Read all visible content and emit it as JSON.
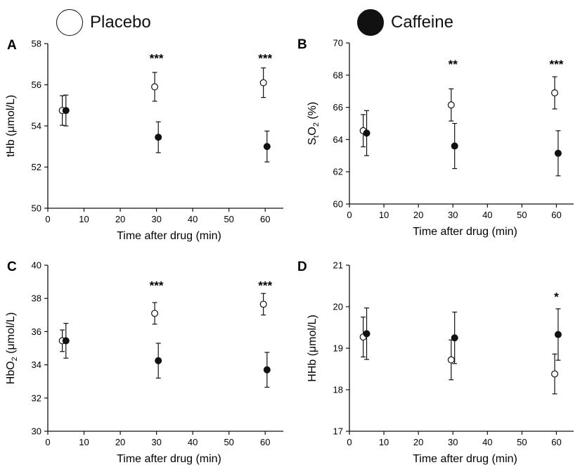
{
  "legend": {
    "items": [
      {
        "label": "Placebo",
        "marker": "open-circle",
        "color": "#ffffff"
      },
      {
        "label": "Caffeine",
        "marker": "filled-circle",
        "color": "#111111"
      }
    ]
  },
  "chart_data": [
    {
      "type": "scatter",
      "panel_label": "A",
      "xlabel": "Time after drug (min)",
      "ylabel": "tHb (μmol/L)",
      "xlim": [
        0,
        65
      ],
      "ylim": [
        50,
        58
      ],
      "xticks": [
        0,
        10,
        20,
        30,
        40,
        50,
        60
      ],
      "yticks": [
        50,
        52,
        54,
        56,
        58
      ],
      "series": [
        {
          "name": "Placebo",
          "marker": "open",
          "points": [
            {
              "x": 4,
              "y": 54.75,
              "err": 0.72
            },
            {
              "x": 29.5,
              "y": 55.9,
              "err": 0.7
            },
            {
              "x": 59.5,
              "y": 56.1,
              "err": 0.72
            }
          ]
        },
        {
          "name": "Caffeine",
          "marker": "filled",
          "points": [
            {
              "x": 5,
              "y": 54.75,
              "err": 0.75
            },
            {
              "x": 30.5,
              "y": 53.45,
              "err": 0.75
            },
            {
              "x": 60.5,
              "y": 53.0,
              "err": 0.75
            }
          ]
        }
      ],
      "annotations": [
        {
          "text": "***",
          "x": 30,
          "y": 57.3
        },
        {
          "text": "***",
          "x": 60,
          "y": 57.3
        }
      ]
    },
    {
      "type": "scatter",
      "panel_label": "B",
      "xlabel": "Time after drug (min)",
      "ylabel_parts": [
        "S",
        "t",
        "O",
        "2",
        " (%)"
      ],
      "xlim": [
        0,
        65
      ],
      "ylim": [
        60,
        70
      ],
      "xticks": [
        0,
        10,
        20,
        30,
        40,
        50,
        60
      ],
      "yticks": [
        60,
        62,
        64,
        66,
        68,
        70
      ],
      "series": [
        {
          "name": "Placebo",
          "marker": "open",
          "points": [
            {
              "x": 4,
              "y": 64.55,
              "err": 1.0
            },
            {
              "x": 29.5,
              "y": 66.15,
              "err": 1.0
            },
            {
              "x": 59.5,
              "y": 66.9,
              "err": 1.0
            }
          ]
        },
        {
          "name": "Caffeine",
          "marker": "filled",
          "points": [
            {
              "x": 5,
              "y": 64.4,
              "err": 1.4
            },
            {
              "x": 30.5,
              "y": 63.6,
              "err": 1.4
            },
            {
              "x": 60.5,
              "y": 63.15,
              "err": 1.4
            }
          ]
        }
      ],
      "annotations": [
        {
          "text": "**",
          "x": 30,
          "y": 68.7
        },
        {
          "text": "***",
          "x": 60,
          "y": 68.7
        }
      ]
    },
    {
      "type": "scatter",
      "panel_label": "C",
      "xlabel": "Time after drug (min)",
      "ylabel_parts": [
        "HbO",
        "2",
        " (μmol/L)"
      ],
      "xlim": [
        0,
        65
      ],
      "ylim": [
        30,
        40
      ],
      "xticks": [
        0,
        10,
        20,
        30,
        40,
        50,
        60
      ],
      "yticks": [
        30,
        32,
        34,
        36,
        38,
        40
      ],
      "series": [
        {
          "name": "Placebo",
          "marker": "open",
          "points": [
            {
              "x": 4,
              "y": 35.45,
              "err": 0.65
            },
            {
              "x": 29.5,
              "y": 37.1,
              "err": 0.65
            },
            {
              "x": 59.5,
              "y": 37.65,
              "err": 0.65
            }
          ]
        },
        {
          "name": "Caffeine",
          "marker": "filled",
          "points": [
            {
              "x": 5,
              "y": 35.45,
              "err": 1.05
            },
            {
              "x": 30.5,
              "y": 34.25,
              "err": 1.05
            },
            {
              "x": 60.5,
              "y": 33.7,
              "err": 1.05
            }
          ]
        }
      ],
      "annotations": [
        {
          "text": "***",
          "x": 30,
          "y": 38.8
        },
        {
          "text": "***",
          "x": 60,
          "y": 38.8
        }
      ]
    },
    {
      "type": "scatter",
      "panel_label": "D",
      "xlabel": "Time after drug (min)",
      "ylabel": "HHb (μmol/L)",
      "xlim": [
        0,
        65
      ],
      "ylim": [
        17,
        21
      ],
      "xticks": [
        0,
        10,
        20,
        30,
        40,
        50,
        60
      ],
      "yticks": [
        17,
        18,
        19,
        20,
        21
      ],
      "series": [
        {
          "name": "Placebo",
          "marker": "open",
          "points": [
            {
              "x": 4,
              "y": 19.27,
              "err": 0.48
            },
            {
              "x": 29.5,
              "y": 18.72,
              "err": 0.48
            },
            {
              "x": 59.5,
              "y": 18.38,
              "err": 0.48
            }
          ]
        },
        {
          "name": "Caffeine",
          "marker": "filled",
          "points": [
            {
              "x": 5,
              "y": 19.35,
              "err": 0.62
            },
            {
              "x": 30.5,
              "y": 19.25,
              "err": 0.62
            },
            {
              "x": 60.5,
              "y": 19.33,
              "err": 0.62
            }
          ]
        }
      ],
      "annotations": [
        {
          "text": "*",
          "x": 60,
          "y": 20.25
        }
      ]
    }
  ]
}
